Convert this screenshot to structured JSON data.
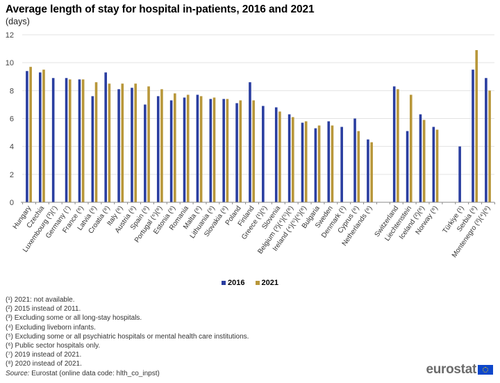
{
  "header": {
    "title": "Average length of stay for hospital in-patients, 2016 and 2021",
    "subtitle": "(days)"
  },
  "chart_data": {
    "type": "bar",
    "title": "Average length of stay for hospital in-patients, 2016 and 2021",
    "subtitle": "(days)",
    "xlabel": "",
    "ylabel": "days",
    "ylim": [
      0,
      12
    ],
    "yticks": [
      0,
      2,
      4,
      6,
      8,
      10,
      12
    ],
    "grid": true,
    "legend_position": "bottom-center",
    "categories": [
      "Hungary",
      "Czechia",
      "Luxembourg (³)(⁷)",
      "Germany (⁷)",
      "France (⁸)",
      "Latvia (⁸)",
      "Croatia (⁸)",
      "Italy (⁸)",
      "Austria (⁸)",
      "Spain (⁸)",
      "Portugal (⁶)(⁸)",
      "Estonia (⁸)",
      "Romania",
      "Malta (⁸)",
      "Lithuania (⁸)",
      "Slovakia (⁸)",
      "Poland",
      "Finland",
      "Greece (¹)(⁵)",
      "Slovenia",
      "Belgium (³)(⁴)(⁵)(⁸)",
      "Ireland (⁴)(⁵)(⁶)(⁸)",
      "Bulgaria",
      "Sweden",
      "Denmark (¹)",
      "Cyprus (⁸)",
      "Netherlands (⁸)",
      "",
      "Switzerland",
      "Liechtenstein",
      "Iceland (²)(⁸)",
      "Norway (⁸)",
      "",
      "Türkiye (¹)",
      "Serbia (⁸)",
      "Montenegro (³)(⁴)(⁸)"
    ],
    "series": [
      {
        "name": "2016",
        "color": "#2a3ea0",
        "values": [
          9.4,
          9.3,
          8.9,
          8.9,
          8.8,
          7.6,
          9.3,
          8.1,
          8.2,
          7.0,
          7.6,
          7.3,
          7.5,
          7.7,
          7.4,
          7.4,
          7.1,
          8.6,
          6.9,
          6.8,
          6.3,
          5.7,
          5.3,
          5.8,
          5.4,
          6.0,
          4.5,
          null,
          8.3,
          5.1,
          6.3,
          5.4,
          null,
          4.0,
          9.5,
          8.9
        ]
      },
      {
        "name": "2021",
        "color": "#b8973a",
        "values": [
          9.7,
          9.5,
          null,
          8.8,
          8.8,
          8.6,
          8.5,
          8.5,
          8.5,
          8.3,
          8.1,
          7.8,
          7.7,
          7.6,
          7.5,
          7.4,
          7.3,
          7.3,
          null,
          6.5,
          6.1,
          5.8,
          5.5,
          5.5,
          null,
          5.1,
          4.3,
          null,
          8.1,
          7.7,
          5.9,
          5.2,
          null,
          null,
          10.9,
          8.0
        ]
      }
    ]
  },
  "legend": [
    {
      "label": "2016",
      "color": "#2a3ea0"
    },
    {
      "label": "2021",
      "color": "#b8973a"
    }
  ],
  "footnotes": [
    "(¹) 2021: not available.",
    "(²) 2015 instead of 2011.",
    "(³) Excluding some or all long-stay hospitals.",
    "(⁴) Excluding liveborn infants.",
    "(⁵) Excluding some or all psychiatric hospitals or mental health care institutions.",
    "(⁶) Public sector hospitals only.",
    "(⁷) 2019 instead of 2021.",
    "(⁸) 2020 instead of 2021."
  ],
  "source": {
    "label": "Source:",
    "text": "Eurostat (online data code: hlth_co_inpst)"
  },
  "logo": {
    "text": "eurostat",
    "flag_icon": "eu-flag-icon"
  }
}
